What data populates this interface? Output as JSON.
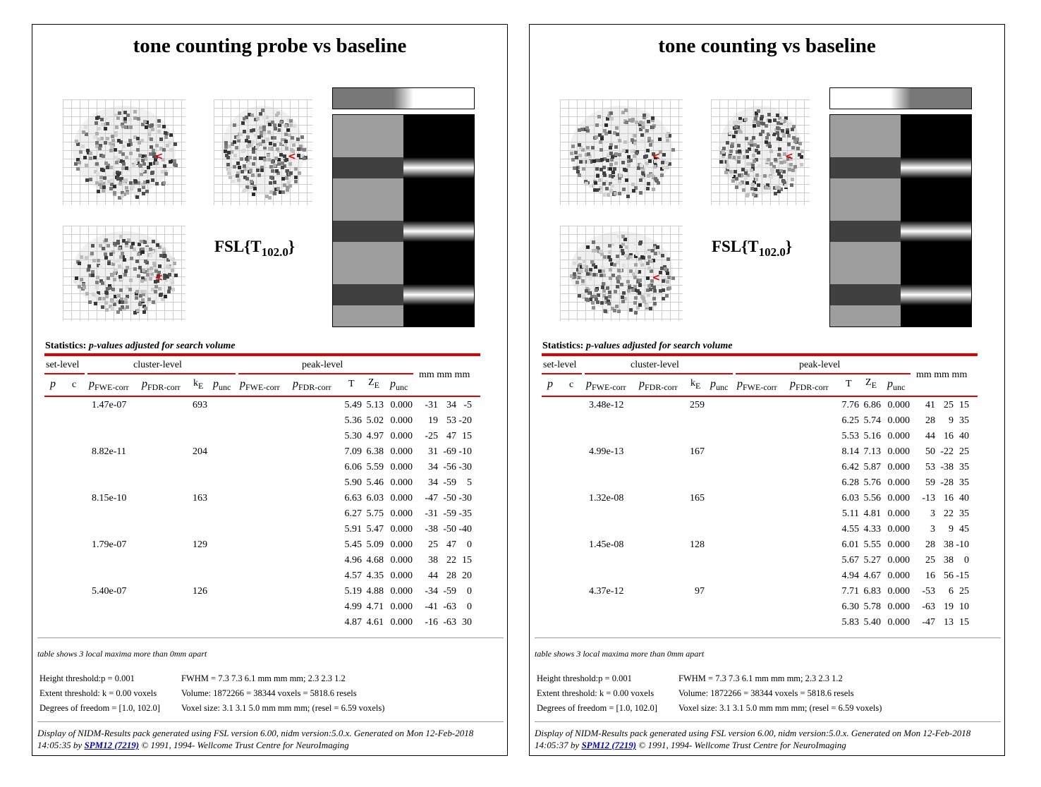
{
  "panels": [
    {
      "title": "tone counting probe vs baseline",
      "stat_label": {
        "name": "FSL{T",
        "sub": "102.0",
        "close": "}"
      },
      "contrast_bar": [
        0.5,
        0.5,
        0.5,
        0.5,
        1,
        1,
        1,
        1
      ],
      "design_columns": [
        {
          "type": "gray",
          "blocks": [
            0.62,
            0.62,
            0.25,
            0.62,
            0.62,
            0.25,
            0.62,
            0.62,
            0.25,
            0.62
          ]
        },
        {
          "type": "event",
          "blocks": [
            0,
            0,
            1,
            0,
            0,
            1,
            0,
            0,
            1,
            0
          ]
        }
      ],
      "statistics_heading": "Statistics:",
      "statistics_subheading": "p-values adjusted for search volume",
      "headers": {
        "set_level": "set-level",
        "cluster_level": "cluster-level",
        "peak_level": "peak-level",
        "mm": "mm mm mm",
        "p": "p",
        "c": "c",
        "pfwe": "p",
        "pfwe_sub": "FWE-corr",
        "pfdr": "p",
        "pfdr_sub": "FDR-corr",
        "k": "k",
        "k_sub": "E",
        "punc": "p",
        "punc_sub": "unc",
        "T": "T",
        "Z": "Z",
        "Z_sub": "E"
      },
      "rows": [
        {
          "cluster_p": "1.47e-07",
          "k": "693",
          "T": "5.49",
          "Z": "5.13",
          "punc": "0.000",
          "x": "-31",
          "y": "34",
          "z": "-5"
        },
        {
          "cluster_p": "",
          "k": "",
          "T": "5.36",
          "Z": "5.02",
          "punc": "0.000",
          "x": "19",
          "y": "53",
          "z": "-20"
        },
        {
          "cluster_p": "",
          "k": "",
          "T": "5.30",
          "Z": "4.97",
          "punc": "0.000",
          "x": "-25",
          "y": "47",
          "z": "15"
        },
        {
          "cluster_p": "8.82e-11",
          "k": "204",
          "T": "7.09",
          "Z": "6.38",
          "punc": "0.000",
          "x": "31",
          "y": "-69",
          "z": "-10"
        },
        {
          "cluster_p": "",
          "k": "",
          "T": "6.06",
          "Z": "5.59",
          "punc": "0.000",
          "x": "34",
          "y": "-56",
          "z": "-30"
        },
        {
          "cluster_p": "",
          "k": "",
          "T": "5.90",
          "Z": "5.46",
          "punc": "0.000",
          "x": "34",
          "y": "-59",
          "z": "5"
        },
        {
          "cluster_p": "8.15e-10",
          "k": "163",
          "T": "6.63",
          "Z": "6.03",
          "punc": "0.000",
          "x": "-47",
          "y": "-50",
          "z": "-30"
        },
        {
          "cluster_p": "",
          "k": "",
          "T": "6.27",
          "Z": "5.75",
          "punc": "0.000",
          "x": "-31",
          "y": "-59",
          "z": "-35"
        },
        {
          "cluster_p": "",
          "k": "",
          "T": "5.91",
          "Z": "5.47",
          "punc": "0.000",
          "x": "-38",
          "y": "-50",
          "z": "-40"
        },
        {
          "cluster_p": "1.79e-07",
          "k": "129",
          "T": "5.45",
          "Z": "5.09",
          "punc": "0.000",
          "x": "25",
          "y": "47",
          "z": "0"
        },
        {
          "cluster_p": "",
          "k": "",
          "T": "4.96",
          "Z": "4.68",
          "punc": "0.000",
          "x": "38",
          "y": "22",
          "z": "15"
        },
        {
          "cluster_p": "",
          "k": "",
          "T": "4.57",
          "Z": "4.35",
          "punc": "0.000",
          "x": "44",
          "y": "28",
          "z": "20"
        },
        {
          "cluster_p": "5.40e-07",
          "k": "126",
          "T": "5.19",
          "Z": "4.88",
          "punc": "0.000",
          "x": "-34",
          "y": "-59",
          "z": "0"
        },
        {
          "cluster_p": "",
          "k": "",
          "T": "4.99",
          "Z": "4.71",
          "punc": "0.000",
          "x": "-41",
          "y": "-63",
          "z": "0"
        },
        {
          "cluster_p": "",
          "k": "",
          "T": "4.87",
          "Z": "4.61",
          "punc": "0.000",
          "x": "-16",
          "y": "-63",
          "z": "30"
        }
      ],
      "table_note": "table shows 3 local maxima more than 0mm apart",
      "thresholds": {
        "height": "Height threshold:p = 0.001",
        "extent": "Extent threshold: k = 0.00 voxels",
        "dof": "Degrees of freedom = [1.0, 102.0]",
        "fwhm": "FWHM = 7.3 7.3 6.1 mm mm mm; 2.3 2.3 1.2",
        "volume": "Volume: 1872266 = 38344 voxels = 5818.6 resels",
        "voxel": "Voxel size: 3.1 3.1 5.0 mm mm mm; (resel = 6.59 voxels)"
      },
      "footer": {
        "pre": "Display of NIDM-Results pack generated using FSL version 6.00, nidm version:5.0.x. Generated on Mon 12-Feb-2018 14:05:35 by ",
        "link": "SPM12 (7219)",
        "post": " © 1991, 1994- Wellcome Trust Centre for NeuroImaging"
      }
    },
    {
      "title": "tone counting vs baseline",
      "stat_label": {
        "name": "FSL{T",
        "sub": "102.0",
        "close": "}"
      },
      "contrast_bar": [
        1,
        1,
        1,
        1,
        0.5,
        0.5,
        0.5,
        0.5
      ],
      "design_columns": [
        {
          "type": "gray",
          "blocks": [
            0.62,
            0.62,
            0.25,
            0.62,
            0.62,
            0.25,
            0.62,
            0.62,
            0.25,
            0.62
          ]
        },
        {
          "type": "event",
          "blocks": [
            0,
            0,
            1,
            0,
            0,
            1,
            0,
            0,
            1,
            0
          ]
        }
      ],
      "statistics_heading": "Statistics:",
      "statistics_subheading": "p-values adjusted for search volume",
      "headers": {
        "set_level": "set-level",
        "cluster_level": "cluster-level",
        "peak_level": "peak-level",
        "mm": "mm mm mm",
        "p": "p",
        "c": "c",
        "pfwe": "p",
        "pfwe_sub": "FWE-corr",
        "pfdr": "p",
        "pfdr_sub": "FDR-corr",
        "k": "k",
        "k_sub": "E",
        "punc": "p",
        "punc_sub": "unc",
        "T": "T",
        "Z": "Z",
        "Z_sub": "E"
      },
      "rows": [
        {
          "cluster_p": "3.48e-12",
          "k": "259",
          "T": "7.76",
          "Z": "6.86",
          "punc": "0.000",
          "x": "41",
          "y": "25",
          "z": "15"
        },
        {
          "cluster_p": "",
          "k": "",
          "T": "6.25",
          "Z": "5.74",
          "punc": "0.000",
          "x": "28",
          "y": "9",
          "z": "35"
        },
        {
          "cluster_p": "",
          "k": "",
          "T": "5.53",
          "Z": "5.16",
          "punc": "0.000",
          "x": "44",
          "y": "16",
          "z": "40"
        },
        {
          "cluster_p": "4.99e-13",
          "k": "167",
          "T": "8.14",
          "Z": "7.13",
          "punc": "0.000",
          "x": "50",
          "y": "-22",
          "z": "25"
        },
        {
          "cluster_p": "",
          "k": "",
          "T": "6.42",
          "Z": "5.87",
          "punc": "0.000",
          "x": "53",
          "y": "-38",
          "z": "35"
        },
        {
          "cluster_p": "",
          "k": "",
          "T": "6.28",
          "Z": "5.76",
          "punc": "0.000",
          "x": "59",
          "y": "-28",
          "z": "35"
        },
        {
          "cluster_p": "1.32e-08",
          "k": "165",
          "T": "6.03",
          "Z": "5.56",
          "punc": "0.000",
          "x": "-13",
          "y": "16",
          "z": "40"
        },
        {
          "cluster_p": "",
          "k": "",
          "T": "5.11",
          "Z": "4.81",
          "punc": "0.000",
          "x": "3",
          "y": "22",
          "z": "35"
        },
        {
          "cluster_p": "",
          "k": "",
          "T": "4.55",
          "Z": "4.33",
          "punc": "0.000",
          "x": "3",
          "y": "9",
          "z": "45"
        },
        {
          "cluster_p": "1.45e-08",
          "k": "128",
          "T": "6.01",
          "Z": "5.55",
          "punc": "0.000",
          "x": "28",
          "y": "38",
          "z": "-10"
        },
        {
          "cluster_p": "",
          "k": "",
          "T": "5.67",
          "Z": "5.27",
          "punc": "0.000",
          "x": "25",
          "y": "38",
          "z": "0"
        },
        {
          "cluster_p": "",
          "k": "",
          "T": "4.94",
          "Z": "4.67",
          "punc": "0.000",
          "x": "16",
          "y": "56",
          "z": "-15"
        },
        {
          "cluster_p": "4.37e-12",
          "k": "97",
          "T": "7.71",
          "Z": "6.83",
          "punc": "0.000",
          "x": "-53",
          "y": "6",
          "z": "25"
        },
        {
          "cluster_p": "",
          "k": "",
          "T": "6.30",
          "Z": "5.78",
          "punc": "0.000",
          "x": "-63",
          "y": "19",
          "z": "10"
        },
        {
          "cluster_p": "",
          "k": "",
          "T": "5.83",
          "Z": "5.40",
          "punc": "0.000",
          "x": "-47",
          "y": "13",
          "z": "15"
        }
      ],
      "table_note": "table shows 3 local maxima more than 0mm apart",
      "thresholds": {
        "height": "Height threshold:p = 0.001",
        "extent": "Extent threshold: k = 0.00 voxels",
        "dof": "Degrees of freedom = [1.0, 102.0]",
        "fwhm": "FWHM = 7.3 7.3 6.1 mm mm mm; 2.3 2.3 1.2",
        "volume": "Volume: 1872266 = 38344 voxels = 5818.6 resels",
        "voxel": "Voxel size: 3.1 3.1 5.0 mm mm mm; (resel = 6.59 voxels)"
      },
      "footer": {
        "pre": "Display of NIDM-Results pack generated using FSL version 6.00, nidm version:5.0.x. Generated on Mon 12-Feb-2018 14:05:37 by ",
        "link": "SPM12 (7219)",
        "post": " © 1991, 1994- Wellcome Trust Centre for NeuroImaging"
      }
    }
  ],
  "colors": {
    "accent_red": "#e00000",
    "link_blue": "#0000c0"
  }
}
